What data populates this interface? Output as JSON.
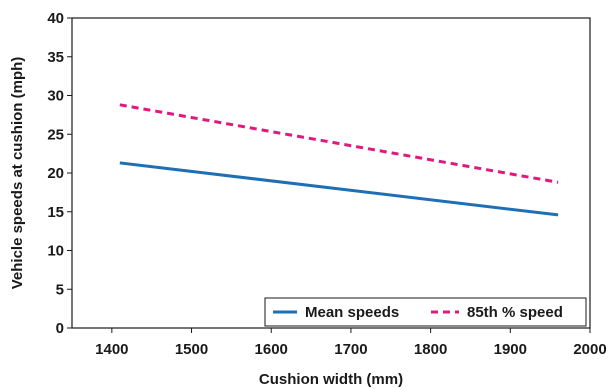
{
  "chart_data": {
    "type": "line",
    "xlabel": "Cushion width (mm)",
    "ylabel": "Vehicle speeds at cushion (mph)",
    "xlim": [
      1350,
      2000
    ],
    "ylim": [
      0,
      40
    ],
    "x_ticks": [
      "1400",
      "1500",
      "1600",
      "1700",
      "1800",
      "1900",
      "2000"
    ],
    "y_ticks": [
      "0",
      "5",
      "10",
      "15",
      "20",
      "25",
      "30",
      "35",
      "40"
    ],
    "grid": false,
    "legend_position": "bottom-right",
    "series": [
      {
        "name": "Mean speeds",
        "style": "solid",
        "color": "#1f6fb4",
        "x": [
          1410,
          1960
        ],
        "y": [
          21.3,
          14.6
        ]
      },
      {
        "name": "85th % speed",
        "style": "dashed",
        "color": "#e0197d",
        "x": [
          1410,
          1960
        ],
        "y": [
          28.8,
          18.8
        ]
      }
    ]
  }
}
